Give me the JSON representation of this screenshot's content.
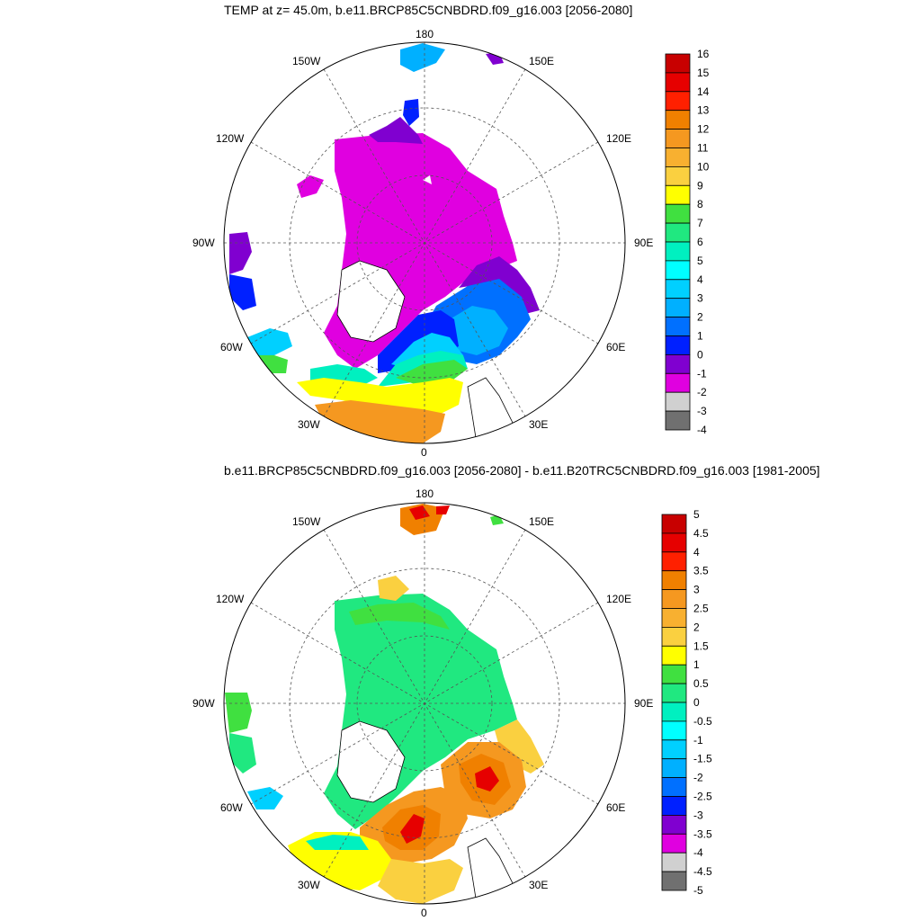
{
  "top_panel": {
    "title": "TEMP at z=  45.0m, b.e11.BRCP85C5CNBDRD.f09_g16.003 [2056-2080]",
    "longitude_labels": [
      "180",
      "150E",
      "120E",
      "90E",
      "60E",
      "30E",
      "0",
      "30W",
      "60W",
      "90W",
      "120W",
      "150W"
    ],
    "colorbar": {
      "labels": [
        "16",
        "15",
        "14",
        "13",
        "12",
        "11",
        "10",
        "9",
        "8",
        "7",
        "6",
        "5",
        "4",
        "3",
        "2",
        "1",
        "0",
        "-1",
        "-2",
        "-3",
        "-4"
      ],
      "colors": [
        "#c80000",
        "#e60000",
        "#ff2000",
        "#f08000",
        "#f59820",
        "#f8b030",
        "#fad040",
        "#ffff00",
        "#40e040",
        "#20e880",
        "#00f0c0",
        "#00ffff",
        "#00d0ff",
        "#00b0ff",
        "#0070ff",
        "#0020ff",
        "#8000d0",
        "#e000e0",
        "#d0d0d0",
        "#707070"
      ]
    }
  },
  "bottom_panel": {
    "title": "b.e11.BRCP85C5CNBDRD.f09_g16.003 [2056-2080] - b.e11.B20TRC5CNBDRD.f09_g16.003 [1981-2005]",
    "longitude_labels": [
      "180",
      "150E",
      "120E",
      "90E",
      "60E",
      "30E",
      "0",
      "30W",
      "60W",
      "90W",
      "120W",
      "150W"
    ],
    "colorbar": {
      "labels": [
        "5",
        "4.5",
        "4",
        "3.5",
        "3",
        "2.5",
        "2",
        "1.5",
        "1",
        "0.5",
        "0",
        "-0.5",
        "-1",
        "-1.5",
        "-2",
        "-2.5",
        "-3",
        "-3.5",
        "-4",
        "-4.5",
        "-5"
      ],
      "colors": [
        "#c80000",
        "#e60000",
        "#ff2000",
        "#f08000",
        "#f59820",
        "#f8b030",
        "#fad040",
        "#ffff00",
        "#40e040",
        "#20e880",
        "#00f0c0",
        "#00ffff",
        "#00d0ff",
        "#00b0ff",
        "#0070ff",
        "#0020ff",
        "#8000d0",
        "#e000e0",
        "#d0d0d0",
        "#707070"
      ]
    }
  }
}
